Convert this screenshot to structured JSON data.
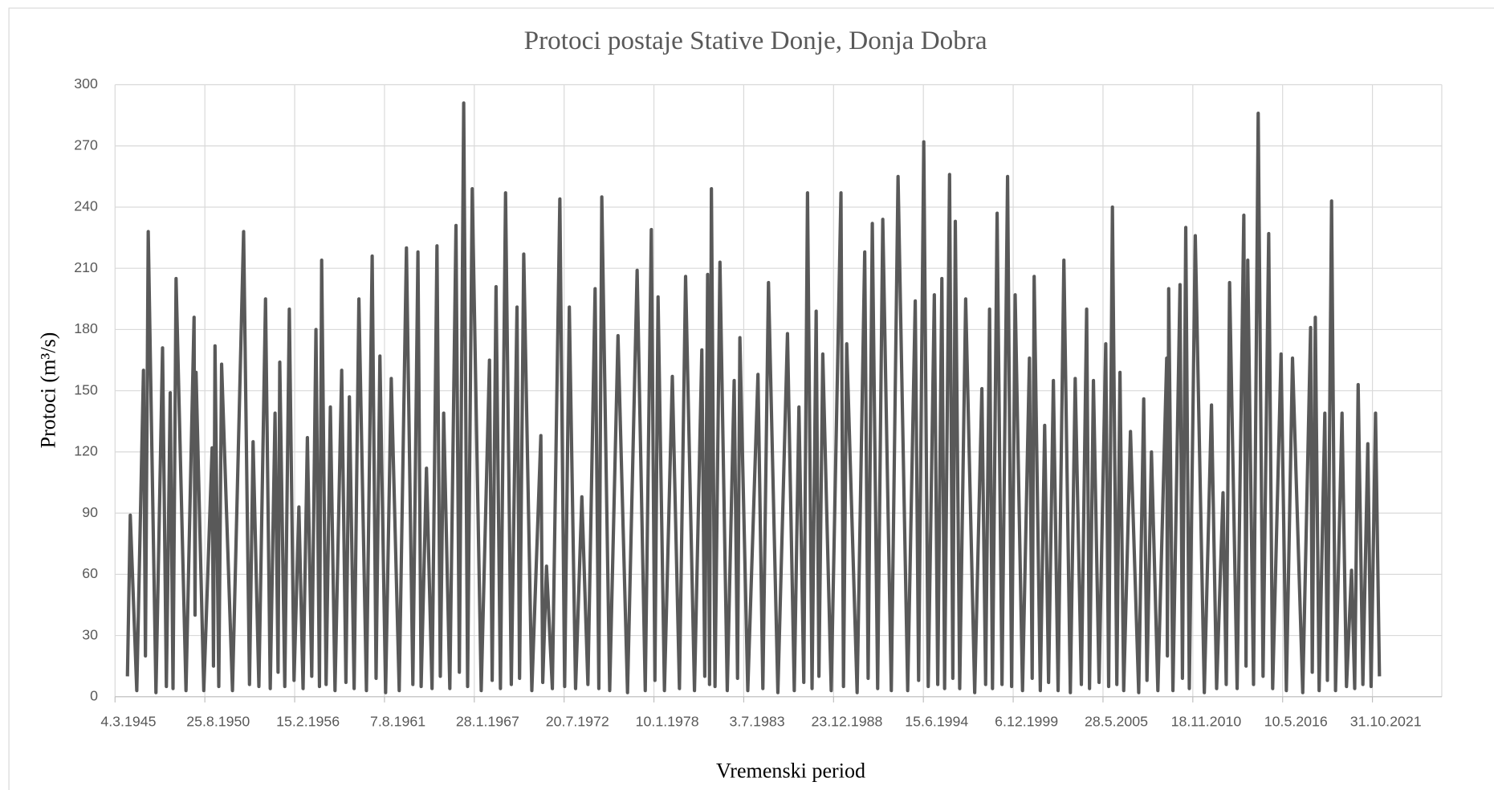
{
  "chart_data": {
    "type": "line",
    "title": "Protoci postaje Stative Donje, Donja Dobra",
    "xlabel": "Vremenski period",
    "ylabel": "Protoci (m³/s)",
    "color": "#595959",
    "grid": true,
    "xlim": [
      "4.3.1945",
      "22.1.2026"
    ],
    "xticks": [
      "4.3.1945",
      "25.8.1950",
      "15.2.1956",
      "7.8.1961",
      "28.1.1967",
      "20.7.1972",
      "10.1.1978",
      "3.7.1983",
      "23.12.1988",
      "15.6.1994",
      "6.12.1999",
      "28.5.2005",
      "18.11.2010",
      "10.5.2016",
      "31.10.2021"
    ],
    "ylim": [
      0,
      300
    ],
    "yticks": [
      0,
      30,
      60,
      90,
      120,
      150,
      180,
      210,
      240,
      270,
      300
    ],
    "x": [
      "5.12.1945",
      "6.2.1946",
      "1.7.1946",
      "27.11.1946",
      "10.1.1947",
      "13.3.1947",
      "1.9.1947",
      "26.1.1948",
      "20.4.1948",
      "15.7.1948",
      "15.9.1948",
      "22.11.1948",
      "1.7.1949",
      "28.12.1949",
      "18.1.1950",
      "10.2.1950",
      "1.8.1950",
      "3.2.1951",
      "5.3.1951",
      "8.4.1951",
      "1.7.1951",
      "2.9.1951",
      "1.5.1952",
      "4.1.1953",
      "15.5.1953",
      "3.8.1953",
      "10.12.1953",
      "7.5.1954",
      "20.8.1954",
      "5.12.1954",
      "10.2.1955",
      "20.3.1955",
      "10.7.1955",
      "19.10.1955",
      "1.2.1956",
      "19.5.1956",
      "20.8.1956",
      "24.11.1956",
      "1.3.1957",
      "3.6.1957",
      "20.8.1957",
      "8.10.1957",
      "15.1.1958",
      "20.4.1958",
      "1.8.1958",
      "28.12.1958",
      "1.4.1959",
      "17.6.1959",
      "1.10.1959",
      "15.1.1960",
      "1.7.1960",
      "6.11.1960",
      "1.2.1961",
      "27.4.1961",
      "1.9.1961",
      "5.1.1962",
      "1.7.1962",
      "9.12.1962",
      "1.5.1963",
      "22.8.1963",
      "1.11.1963",
      "28.2.1964",
      "1.7.1964",
      "19.10.1964",
      "1.1.1965",
      "17.3.1965",
      "1.8.1965",
      "16.12.1965",
      "1.3.1966",
      "6.6.1966",
      "1.9.1966",
      "13.12.1966",
      "1.7.1967",
      "1.1.1968",
      "1.3.1968",
      "26.5.1968",
      "1.9.1968",
      "24.12.1968",
      "1.5.1969",
      "5.9.1969",
      "1.11.1969",
      "2.2.1970",
      "1.8.1970",
      "18.2.1971",
      "1.4.1971",
      "24.6.1971",
      "1.11.1971",
      "16.4.1972",
      "1.8.1972",
      "13.11.1972",
      "1.4.1973",
      "19.8.1973",
      "1.1.1974",
      "10.6.1974",
      "1.9.1974",
      "6.11.1974",
      "1.5.1975",
      "2.11.1975",
      "1.6.1976",
      "1.1.1977",
      "1.7.1977",
      "13.11.1977",
      "1.2.1978",
      "12.4.1978",
      "1.9.1978",
      "24.2.1979",
      "1.8.1979",
      "16.12.1979",
      "1.7.1980",
      "12.12.1980",
      "15.2.1981",
      "20.4.1981",
      "1.6.1981",
      "13.7.1981",
      "1.10.1981",
      "19.1.1982",
      "1.7.1982",
      "2.12.1982",
      "15.2.1983",
      "8.4.1983",
      "1.10.1983",
      "15.5.1984",
      "1.9.1984",
      "4.1.1985",
      "1.8.1985",
      "3.3.1986",
      "1.8.1986",
      "13.11.1986",
      "1.3.1987",
      "23.5.1987",
      "1.9.1987",
      "2.12.1987",
      "1.2.1988",
      "27.4.1988",
      "1.11.1988",
      "6.6.1989",
      "1.8.1989",
      "12.10.1989",
      "1.6.1990",
      "17.11.1990",
      "1.2.1991",
      "5.5.1991",
      "1.9.1991",
      "24.12.1991",
      "1.7.1992",
      "28.11.1992",
      "1.7.1993",
      "16.12.1993",
      "1.3.1994",
      "24.6.1994",
      "1.10.1994",
      "14.2.1995",
      "1.5.1995",
      "1.8.1995",
      "1.10.1995",
      "19.1.1996",
      "1.4.1996",
      "26.5.1996",
      "1.9.1996",
      "12.1.1997",
      "1.8.1997",
      "8.1.1998",
      "1.4.1998",
      "28.6.1998",
      "1.9.1998",
      "13.12.1998",
      "1.4.1999",
      "3.8.1999",
      "1.11.1999",
      "19.1.2000",
      "1.7.2000",
      "2.12.2000",
      "1.2.2001",
      "17.3.2001",
      "1.8.2001",
      "6.11.2001",
      "1.2.2002",
      "19.5.2002",
      "1.9.2002",
      "8.1.2003",
      "1.6.2003",
      "17.9.2003",
      "1.2.2004",
      "29.5.2004",
      "1.8.2004",
      "27.10.2004",
      "1.3.2005",
      "28.7.2005",
      "1.10.2005",
      "24.12.2005",
      "1.4.2006",
      "10.6.2006",
      "1.9.2006",
      "30.1.2007",
      "1.8.2007",
      "21.11.2007",
      "1.2.2008",
      "11.5.2008",
      "1.10.2008",
      "16.4.2009",
      "1.5.2009",
      "30.5.2009",
      "1.9.2009",
      "6.2.2010",
      "1.4.2010",
      "14.6.2010",
      "1.9.2010",
      "12.1.2011",
      "1.8.2011",
      "8.1.2012",
      "1.5.2012",
      "21.9.2012",
      "1.12.2012",
      "14.2.2013",
      "1.8.2013",
      "28.12.2013",
      "15.2.2014",
      "25.3.2014",
      "1.8.2014",
      "13.11.2014",
      "1.3.2015",
      "5.7.2015",
      "1.10.2015",
      "5.4.2016",
      "1.8.2016",
      "16.12.2016",
      "1.8.2017",
      "23.1.2018",
      "1.3.2018",
      "8.5.2018",
      "1.8.2018",
      "6.12.2018",
      "1.2.2019",
      "5.5.2019",
      "1.8.2019",
      "24.12.2019",
      "1.4.2020",
      "23.7.2020",
      "1.10.2020",
      "17.12.2020",
      "1.4.2021",
      "20.7.2021",
      "1.10.2021",
      "8.1.2022",
      "5.4.2022"
    ],
    "values": [
      10,
      89,
      3,
      160,
      20,
      228,
      2,
      171,
      5,
      149,
      4,
      205,
      3,
      186,
      40,
      159,
      3,
      122,
      15,
      172,
      5,
      163,
      3,
      228,
      6,
      125,
      5,
      195,
      4,
      139,
      12,
      164,
      5,
      190,
      8,
      93,
      4,
      127,
      10,
      180,
      5,
      214,
      6,
      142,
      3,
      160,
      7,
      147,
      4,
      195,
      3,
      216,
      9,
      167,
      2,
      156,
      3,
      220,
      6,
      218,
      5,
      112,
      4,
      221,
      10,
      139,
      4,
      231,
      12,
      291,
      5,
      249,
      3,
      165,
      8,
      201,
      4,
      247,
      6,
      191,
      9,
      217,
      3,
      128,
      7,
      64,
      4,
      244,
      5,
      191,
      4,
      98,
      6,
      200,
      4,
      245,
      3,
      177,
      2,
      209,
      3,
      229,
      8,
      196,
      3,
      157,
      4,
      206,
      3,
      170,
      10,
      207,
      6,
      249,
      5,
      213,
      3,
      155,
      9,
      176,
      3,
      158,
      4,
      203,
      2,
      178,
      3,
      142,
      7,
      247,
      4,
      189,
      10,
      168,
      3,
      247,
      5,
      173,
      2,
      218,
      9,
      232,
      4,
      234,
      3,
      255,
      3,
      194,
      8,
      272,
      5,
      197,
      6,
      205,
      4,
      256,
      9,
      233,
      4,
      195,
      2,
      151,
      6,
      190,
      4,
      237,
      6,
      255,
      5,
      197,
      3,
      166,
      9,
      206,
      3,
      133,
      7,
      155,
      3,
      214,
      2,
      156,
      6,
      190,
      4,
      155,
      7,
      173,
      5,
      240,
      6,
      159,
      3,
      130,
      2,
      146,
      8,
      120,
      3,
      166,
      20,
      200,
      3,
      202,
      9,
      230,
      4,
      226,
      2,
      143,
      4,
      100,
      6,
      203,
      4,
      236,
      15,
      214,
      6,
      286,
      10,
      227,
      4,
      168,
      3,
      166,
      2,
      181,
      12,
      186,
      3,
      139,
      8,
      243,
      3,
      139,
      5,
      62,
      4,
      153,
      6,
      124,
      5,
      139,
      10
    ]
  }
}
